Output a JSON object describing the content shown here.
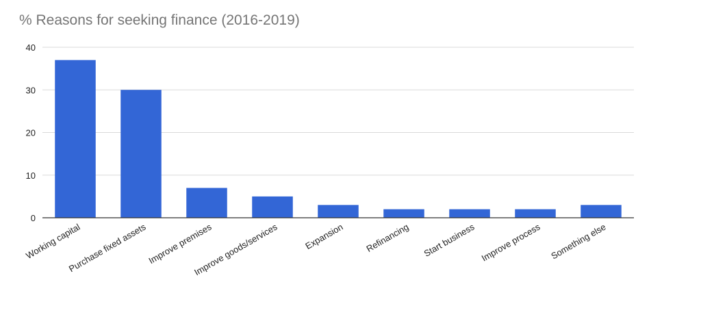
{
  "chart_data": {
    "type": "bar",
    "title": "% Reasons for seeking finance (2016-2019)",
    "categories": [
      "Working capital",
      "Purchase fixed assets",
      "Improve premises",
      "Improve goods/services",
      "Expansion",
      "Refinancing",
      "Start business",
      "Improve process",
      "Something else"
    ],
    "values": [
      37,
      30,
      7,
      5,
      3,
      2,
      2,
      2,
      3
    ],
    "ylim": [
      0,
      40
    ],
    "yticks": [
      0,
      10,
      20,
      30,
      40
    ],
    "xlabel": "",
    "ylabel": "",
    "grid": true,
    "legend": "none",
    "bar_color": "#3366d6",
    "grid_color": "#d9d9d9",
    "axis_color": "#333333"
  }
}
